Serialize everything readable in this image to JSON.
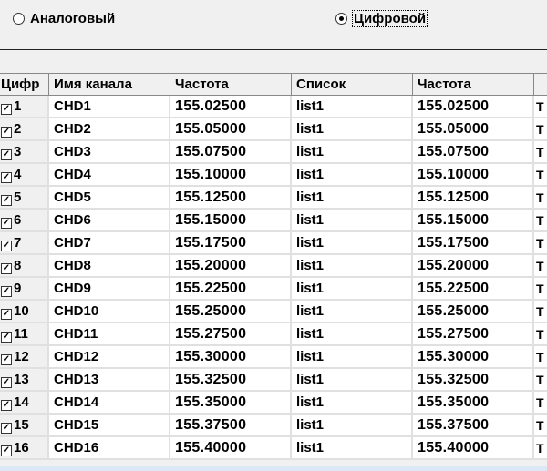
{
  "mode": {
    "analog_label": "Аналоговый",
    "digital_label": "Цифровой",
    "selected": "digital"
  },
  "table": {
    "columns": [
      "Цифр",
      "Имя канала",
      "Частота",
      "Список",
      "Частота",
      ""
    ],
    "rows": [
      {
        "num": "1",
        "checked": true,
        "name": "CHD1",
        "freq": "155.02500",
        "list": "list1",
        "freq2": "155.02500",
        "extra": "Т"
      },
      {
        "num": "2",
        "checked": true,
        "name": "CHD2",
        "freq": "155.05000",
        "list": "list1",
        "freq2": "155.05000",
        "extra": "Т"
      },
      {
        "num": "3",
        "checked": true,
        "name": "CHD3",
        "freq": "155.07500",
        "list": "list1",
        "freq2": "155.07500",
        "extra": "Т"
      },
      {
        "num": "4",
        "checked": true,
        "name": "CHD4",
        "freq": "155.10000",
        "list": "list1",
        "freq2": "155.10000",
        "extra": "Т"
      },
      {
        "num": "5",
        "checked": true,
        "name": "CHD5",
        "freq": "155.12500",
        "list": "list1",
        "freq2": "155.12500",
        "extra": "Т"
      },
      {
        "num": "6",
        "checked": true,
        "name": "CHD6",
        "freq": "155.15000",
        "list": "list1",
        "freq2": "155.15000",
        "extra": "Т"
      },
      {
        "num": "7",
        "checked": true,
        "name": "CHD7",
        "freq": "155.17500",
        "list": "list1",
        "freq2": "155.17500",
        "extra": "Т"
      },
      {
        "num": "8",
        "checked": true,
        "name": "CHD8",
        "freq": "155.20000",
        "list": "list1",
        "freq2": "155.20000",
        "extra": "Т"
      },
      {
        "num": "9",
        "checked": true,
        "name": "CHD9",
        "freq": "155.22500",
        "list": "list1",
        "freq2": "155.22500",
        "extra": "Т"
      },
      {
        "num": "10",
        "checked": true,
        "name": "CHD10",
        "freq": "155.25000",
        "list": "list1",
        "freq2": "155.25000",
        "extra": "Т"
      },
      {
        "num": "11",
        "checked": true,
        "name": "CHD11",
        "freq": "155.27500",
        "list": "list1",
        "freq2": "155.27500",
        "extra": "Т"
      },
      {
        "num": "12",
        "checked": true,
        "name": "CHD12",
        "freq": "155.30000",
        "list": "list1",
        "freq2": "155.30000",
        "extra": "Т"
      },
      {
        "num": "13",
        "checked": true,
        "name": "CHD13",
        "freq": "155.32500",
        "list": "list1",
        "freq2": "155.32500",
        "extra": "Т"
      },
      {
        "num": "14",
        "checked": true,
        "name": "CHD14",
        "freq": "155.35000",
        "list": "list1",
        "freq2": "155.35000",
        "extra": "Т"
      },
      {
        "num": "15",
        "checked": true,
        "name": "CHD15",
        "freq": "155.37500",
        "list": "list1",
        "freq2": "155.37500",
        "extra": "Т"
      },
      {
        "num": "16",
        "checked": true,
        "name": "CHD16",
        "freq": "155.40000",
        "list": "list1",
        "freq2": "155.40000",
        "extra": "Т"
      }
    ]
  }
}
